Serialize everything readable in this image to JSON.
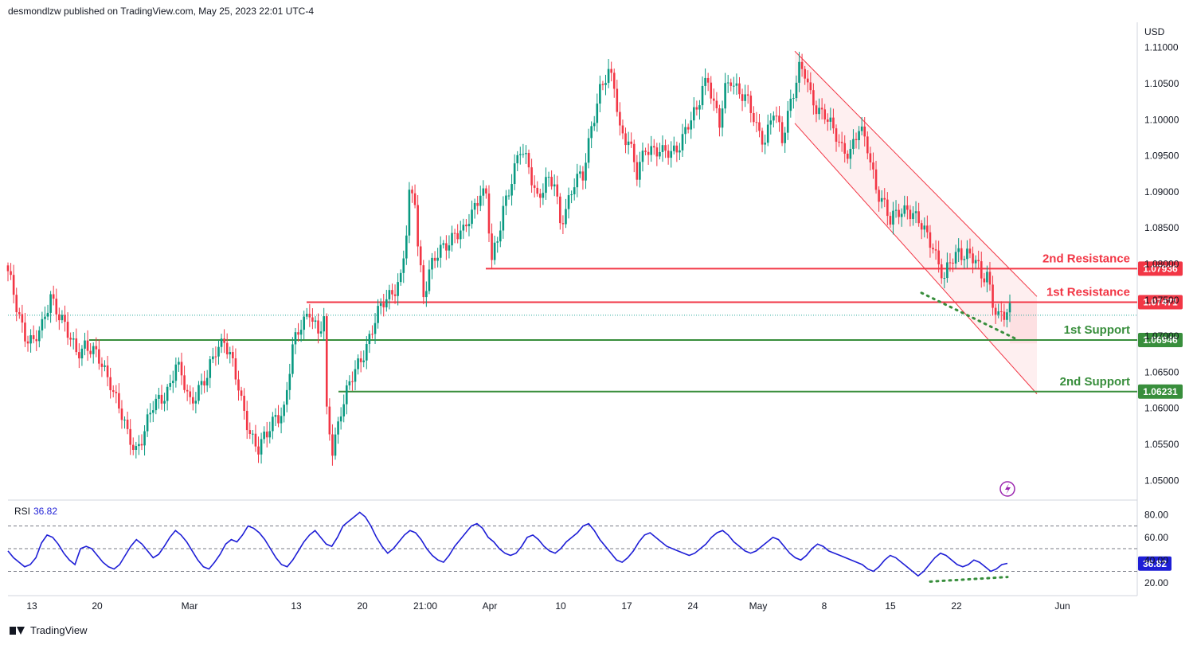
{
  "header": {
    "publisher_line": "desmondlzw published on TradingView.com, May 25, 2023 22:01 UTC-4"
  },
  "footer": {
    "brand": "TradingView"
  },
  "chart_data": [
    {
      "type": "candlestick",
      "symbol_currency": "USD",
      "y_ticks": [
        "1.11000",
        "1.10500",
        "1.10000",
        "1.09500",
        "1.09000",
        "1.08500",
        "1.08000",
        "1.07500",
        "1.07000",
        "1.06500",
        "1.06000",
        "1.05500",
        "1.05000"
      ],
      "ylim": [
        1.0475,
        1.1135
      ],
      "x_ticks": [
        "13",
        "20",
        "Mar",
        "13",
        "20",
        "21:00",
        "Apr",
        "10",
        "17",
        "24",
        "May",
        "8",
        "15",
        "22",
        "Jun"
      ],
      "levels": [
        {
          "label": "2nd Resistance",
          "value": 1.07936,
          "value_text": "1.07936",
          "color": "#f23645"
        },
        {
          "label": "1st Resistance",
          "value": 1.07471,
          "value_text": "1.07471",
          "color": "#f23645"
        },
        {
          "label": "1st Support",
          "value": 1.06946,
          "value_text": "1.06946",
          "color": "#388e3c"
        },
        {
          "label": "2nd Support",
          "value": 1.06231,
          "value_text": "1.06231",
          "color": "#388e3c"
        }
      ],
      "price_path": [
        [
          0,
          1.0785
        ],
        [
          3,
          1.074
        ],
        [
          6,
          1.0705
        ],
        [
          9,
          1.069
        ],
        [
          12,
          1.071
        ],
        [
          15,
          1.076
        ],
        [
          18,
          1.073
        ],
        [
          21,
          1.07
        ],
        [
          24,
          1.068
        ],
        [
          27,
          1.069
        ],
        [
          30,
          1.0675
        ],
        [
          33,
          1.066
        ],
        [
          36,
          1.064
        ],
        [
          39,
          1.06
        ],
        [
          42,
          1.056
        ],
        [
          45,
          1.0545
        ],
        [
          48,
          1.057
        ],
        [
          51,
          1.06
        ],
        [
          54,
          1.0615
        ],
        [
          57,
          1.0635
        ],
        [
          59,
          1.066
        ],
        [
          61,
          1.064
        ],
        [
          64,
          1.061
        ],
        [
          67,
          1.063
        ],
        [
          70,
          1.064
        ],
        [
          73,
          1.068
        ],
        [
          76,
          1.07
        ],
        [
          79,
          1.066
        ],
        [
          82,
          1.0605
        ],
        [
          85,
          1.057
        ],
        [
          88,
          1.0545
        ],
        [
          91,
          1.056
        ],
        [
          94,
          1.059
        ],
        [
          97,
          1.06
        ],
        [
          100,
          1.068
        ],
        [
          103,
          1.0715
        ],
        [
          106,
          1.074
        ],
        [
          109,
          1.07
        ],
        [
          111,
          1.072
        ],
        [
          112,
          1.059
        ],
        [
          114,
          1.0545
        ],
        [
          117,
          1.06
        ],
        [
          120,
          1.063
        ],
        [
          123,
          1.066
        ],
        [
          126,
          1.069
        ],
        [
          129,
          1.072
        ],
        [
          132,
          1.0745
        ],
        [
          135,
          1.0765
        ],
        [
          138,
          1.078
        ],
        [
          140,
          1.084
        ],
        [
          141,
          1.089
        ],
        [
          143,
          1.089
        ],
        [
          144,
          1.083
        ],
        [
          146,
          1.076
        ],
        [
          148,
          1.079
        ],
        [
          151,
          1.081
        ],
        [
          154,
          1.083
        ],
        [
          157,
          1.0845
        ],
        [
          160,
          1.084
        ],
        [
          163,
          1.087
        ],
        [
          166,
          1.0905
        ],
        [
          168,
          1.0895
        ],
        [
          170,
          1.08
        ],
        [
          172,
          1.083
        ],
        [
          174,
          1.088
        ],
        [
          177,
          1.092
        ],
        [
          180,
          1.0955
        ],
        [
          183,
          1.0935
        ],
        [
          186,
          1.0895
        ],
        [
          189,
          1.091
        ],
        [
          192,
          1.091
        ],
        [
          194,
          1.086
        ],
        [
          196,
          1.088
        ],
        [
          199,
          1.091
        ],
        [
          202,
          1.092
        ],
        [
          205,
          1.0995
        ],
        [
          208,
          1.104
        ],
        [
          211,
          1.106
        ],
        [
          213,
          1.105
        ],
        [
          215,
          1.099
        ],
        [
          218,
          1.097
        ],
        [
          221,
          1.092
        ],
        [
          224,
          1.0965
        ],
        [
          227,
          1.096
        ],
        [
          230,
          1.095
        ],
        [
          233,
          1.0955
        ],
        [
          236,
          1.097
        ],
        [
          239,
          1.099
        ],
        [
          242,
          1.101
        ],
        [
          244,
          1.105
        ],
        [
          246,
          1.106
        ],
        [
          248,
          1.102
        ],
        [
          250,
          1.099
        ],
        [
          252,
          1.104
        ],
        [
          254,
          1.106
        ],
        [
          257,
          1.104
        ],
        [
          260,
          1.102
        ],
        [
          263,
          1.099
        ],
        [
          266,
          1.0975
        ],
        [
          269,
          1.101
        ],
        [
          272,
          1.097
        ],
        [
          275,
          1.103
        ],
        [
          278,
          1.107
        ],
        [
          280,
          1.106
        ],
        [
          282,
          1.103
        ],
        [
          284,
          1.102
        ],
        [
          287,
          1.101
        ],
        [
          290,
          1.098
        ],
        [
          293,
          1.096
        ],
        [
          296,
          1.096
        ],
        [
          299,
          1.0985
        ],
        [
          302,
          1.096
        ],
        [
          305,
          1.091
        ],
        [
          308,
          1.088
        ],
        [
          310,
          1.0855
        ],
        [
          313,
          1.0875
        ],
        [
          316,
          1.088
        ],
        [
          319,
          1.086
        ],
        [
          322,
          1.0845
        ],
        [
          325,
          1.083
        ],
        [
          327,
          1.08
        ],
        [
          329,
          1.0775
        ],
        [
          331,
          1.08
        ],
        [
          334,
          1.082
        ],
        [
          337,
          1.0815
        ],
        [
          340,
          1.08
        ],
        [
          342,
          1.078
        ],
        [
          344,
          1.079
        ],
        [
          346,
          1.075
        ],
        [
          348,
          1.0725
        ],
        [
          350,
          1.0725
        ],
        [
          352,
          1.0735
        ]
      ]
    },
    {
      "type": "line",
      "title": "RSI",
      "current_value": 36.82,
      "current_value_text": "36.82",
      "y_ticks": [
        "80.00",
        "60.00",
        "40.00",
        "20.00"
      ],
      "ylim": [
        10,
        90
      ],
      "bands": [
        70,
        50,
        30
      ],
      "color": "#1e1ed6",
      "values": [
        48,
        42,
        38,
        34,
        36,
        42,
        55,
        62,
        60,
        54,
        46,
        40,
        36,
        50,
        52,
        50,
        44,
        38,
        34,
        32,
        36,
        44,
        52,
        58,
        54,
        48,
        42,
        45,
        52,
        60,
        66,
        62,
        56,
        48,
        40,
        34,
        32,
        38,
        45,
        54,
        58,
        56,
        62,
        70,
        68,
        64,
        58,
        50,
        42,
        36,
        34,
        40,
        48,
        56,
        62,
        66,
        60,
        54,
        52,
        60,
        70,
        74,
        78,
        82,
        78,
        70,
        60,
        52,
        46,
        50,
        56,
        62,
        66,
        64,
        58,
        50,
        44,
        40,
        38,
        44,
        52,
        58,
        64,
        70,
        72,
        68,
        60,
        56,
        50,
        46,
        44,
        46,
        52,
        60,
        62,
        58,
        52,
        48,
        46,
        50,
        56,
        60,
        64,
        70,
        72,
        66,
        58,
        52,
        46,
        40,
        38,
        42,
        48,
        56,
        62,
        64,
        60,
        56,
        52,
        50,
        48,
        46,
        44,
        46,
        50,
        54,
        60,
        64,
        66,
        62,
        56,
        52,
        48,
        46,
        48,
        52,
        56,
        60,
        58,
        52,
        46,
        42,
        40,
        44,
        50,
        54,
        52,
        48,
        46,
        44,
        42,
        40,
        38,
        36,
        32,
        30,
        34,
        40,
        44,
        42,
        38,
        34,
        30,
        26,
        30,
        36,
        42,
        46,
        44,
        40,
        36,
        34,
        36,
        40,
        38,
        34,
        30,
        32,
        36,
        37
      ]
    }
  ]
}
